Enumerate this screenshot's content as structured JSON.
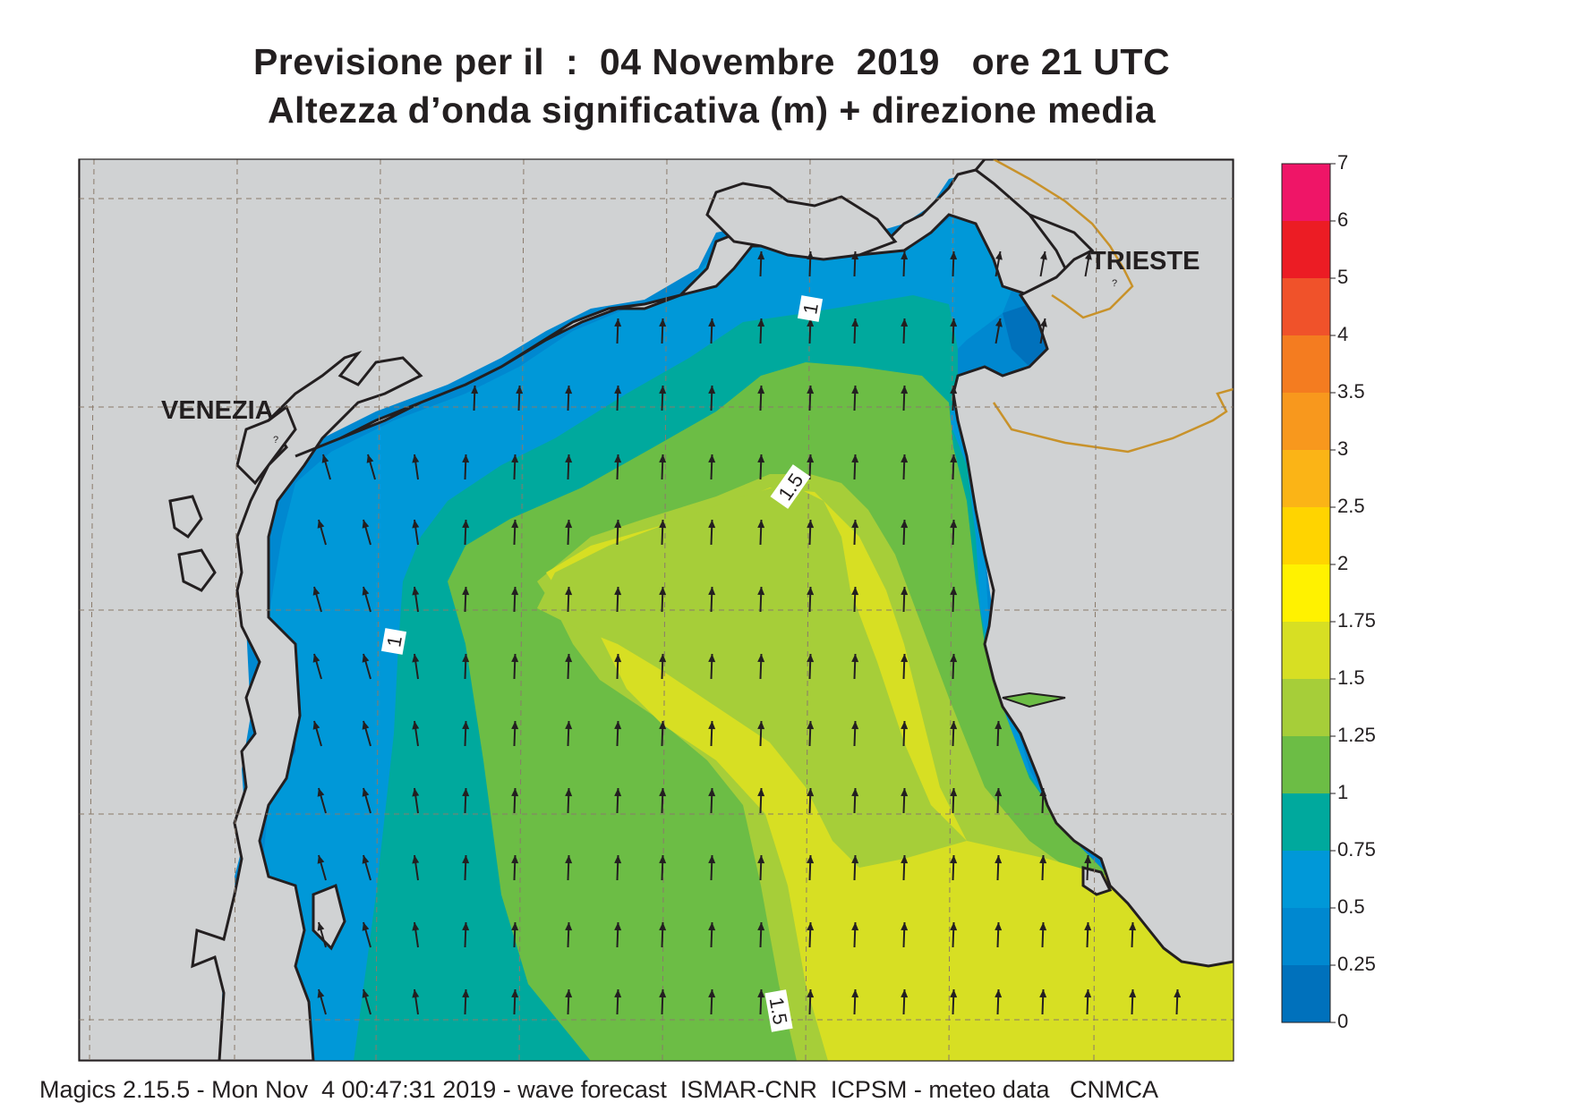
{
  "header": {
    "title_line1": "Previsione per il  :  04 Novembre  2019   ore 21 UTC",
    "title_line2": "Altezza d’onda significativa (m) + direzione media"
  },
  "map": {
    "places": [
      {
        "name": "VENEZIA"
      },
      {
        "name": "TRIESTE"
      }
    ],
    "contour_labels": [
      "1",
      "1.5",
      "1",
      "1.5"
    ],
    "land_color": "#d0d2d3",
    "coastline_color": "#231f20",
    "border_color": "#c8922a",
    "arrow_direction": "north",
    "arrow_color": "#231f20"
  },
  "legend": {
    "ticks": [
      "7",
      "6",
      "5",
      "4",
      "3.5",
      "3",
      "2.5",
      "2",
      "1.75",
      "1.5",
      "1.25",
      "1",
      "0.75",
      "0.5",
      "0.25",
      "0"
    ],
    "colors": [
      "#ef1567",
      "#ec1c24",
      "#f0522a",
      "#f47c20",
      "#f8981d",
      "#fbb416",
      "#ffd400",
      "#fff200",
      "#d7df23",
      "#a6ce39",
      "#6cbd45",
      "#00a99d",
      "#0098d8",
      "#0088d0",
      "#0071bc",
      "#005bab"
    ]
  },
  "footer": {
    "text": "Magics 2.15.5 - Mon Nov  4 00:47:31 2019 - wave forecast  ISMAR-CNR  ICPSM - meteo data   CNMCA"
  }
}
